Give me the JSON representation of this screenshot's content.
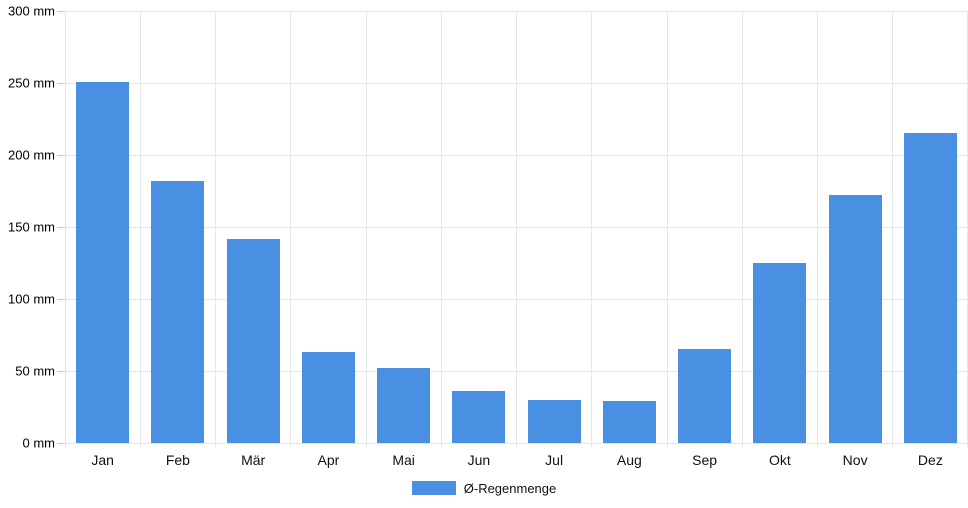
{
  "chart_data": {
    "type": "bar",
    "title": "",
    "xlabel": "",
    "ylabel": "",
    "unit": "mm",
    "categories": [
      "Jan",
      "Feb",
      "Mär",
      "Apr",
      "Mai",
      "Jun",
      "Jul",
      "Aug",
      "Sep",
      "Okt",
      "Nov",
      "Dez"
    ],
    "series": [
      {
        "name": "Ø-Regenmenge",
        "color": "#4a90e2",
        "values": [
          251,
          182,
          142,
          63,
          52,
          36,
          30,
          29,
          65,
          125,
          172,
          215
        ]
      }
    ],
    "ylim": [
      0,
      300
    ],
    "ytick_step": 50,
    "ytick_labels": [
      "0 mm",
      "50 mm",
      "100 mm",
      "150 mm",
      "200 mm",
      "250 mm",
      "300 mm"
    ],
    "grid": true,
    "legend_position": "bottom"
  },
  "legend": {
    "series_label": "Ø-Regenmenge"
  },
  "colors": {
    "bar": "#4a90e2",
    "gridline": "#e6e6e6",
    "tick": "#c9c9c9",
    "axis_text": "#000000",
    "background": "#ffffff"
  }
}
